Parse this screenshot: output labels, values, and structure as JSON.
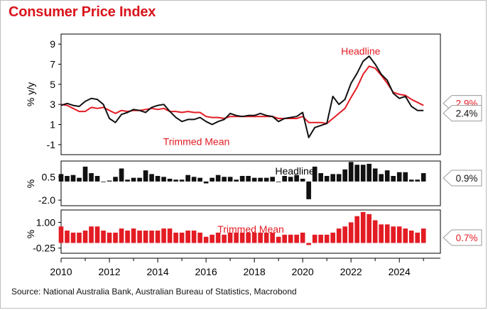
{
  "title": "Consumer Price Index",
  "source": "Source: National Australia Bank, Australian Bureau of Statistics, Macrobond",
  "colors": {
    "headline": "#111111",
    "trimmed": "#e31b23",
    "title": "#d9141b"
  },
  "chart_data": [
    {
      "type": "line",
      "ylabel": "% y/y",
      "xlim": [
        2010,
        2025.7
      ],
      "ylim": [
        -2,
        10
      ],
      "yticks": [
        9,
        7,
        5,
        3,
        1,
        -1
      ],
      "xticks": [
        2010,
        2012,
        2014,
        2016,
        2018,
        2020,
        2022,
        2024
      ],
      "annotations": [
        {
          "text": "Headline",
          "color": "#e31b23",
          "x": 2022.4,
          "y": 8.3
        },
        {
          "text": "Trimmed Mean",
          "color": "#e31b23",
          "x": 2015.6,
          "y": -0.7
        }
      ],
      "end_labels": [
        {
          "text": "2.9%",
          "color": "#e31b23",
          "value": 2.9
        },
        {
          "text": "2.4%",
          "color": "#111111",
          "value": 2.4
        }
      ],
      "series": [
        {
          "name": "Headline",
          "color": "#111111",
          "x": [
            2010.0,
            2010.25,
            2010.5,
            2010.75,
            2011.0,
            2011.25,
            2011.5,
            2011.75,
            2012.0,
            2012.25,
            2012.5,
            2012.75,
            2013.0,
            2013.25,
            2013.5,
            2013.75,
            2014.0,
            2014.25,
            2014.5,
            2014.75,
            2015.0,
            2015.25,
            2015.5,
            2015.75,
            2016.0,
            2016.25,
            2016.5,
            2016.75,
            2017.0,
            2017.25,
            2017.5,
            2017.75,
            2018.0,
            2018.25,
            2018.5,
            2018.75,
            2019.0,
            2019.25,
            2019.5,
            2019.75,
            2020.0,
            2020.25,
            2020.5,
            2020.75,
            2021.0,
            2021.25,
            2021.5,
            2021.75,
            2022.0,
            2022.25,
            2022.5,
            2022.75,
            2023.0,
            2023.25,
            2023.5,
            2023.75,
            2024.0,
            2024.25,
            2024.5,
            2024.75,
            2025.0
          ],
          "values": [
            2.9,
            3.1,
            2.9,
            2.8,
            3.3,
            3.6,
            3.5,
            3.0,
            1.6,
            1.2,
            2.0,
            2.2,
            2.5,
            2.4,
            2.2,
            2.7,
            2.9,
            3.0,
            2.3,
            1.7,
            1.3,
            1.5,
            1.5,
            1.7,
            1.3,
            1.0,
            1.3,
            1.5,
            2.1,
            1.9,
            1.8,
            1.9,
            1.9,
            2.1,
            1.9,
            1.8,
            1.3,
            1.6,
            1.7,
            1.8,
            2.2,
            -0.3,
            0.7,
            0.9,
            1.1,
            3.8,
            3.0,
            3.5,
            5.1,
            6.1,
            7.3,
            7.8,
            7.0,
            6.0,
            5.4,
            4.1,
            3.6,
            3.8,
            2.8,
            2.4,
            2.4
          ]
        },
        {
          "name": "Trimmed Mean",
          "color": "#e31b23",
          "x": [
            2010.0,
            2010.25,
            2010.5,
            2010.75,
            2011.0,
            2011.25,
            2011.5,
            2011.75,
            2012.0,
            2012.25,
            2012.5,
            2012.75,
            2013.0,
            2013.25,
            2013.5,
            2013.75,
            2014.0,
            2014.25,
            2014.5,
            2014.75,
            2015.0,
            2015.25,
            2015.5,
            2015.75,
            2016.0,
            2016.25,
            2016.5,
            2016.75,
            2017.0,
            2017.25,
            2017.5,
            2017.75,
            2018.0,
            2018.25,
            2018.5,
            2018.75,
            2019.0,
            2019.25,
            2019.5,
            2019.75,
            2020.0,
            2020.25,
            2020.5,
            2020.75,
            2021.0,
            2021.25,
            2021.5,
            2021.75,
            2022.0,
            2022.25,
            2022.5,
            2022.75,
            2023.0,
            2023.25,
            2023.5,
            2023.75,
            2024.0,
            2024.25,
            2024.5,
            2024.75,
            2025.0
          ],
          "values": [
            3.0,
            2.9,
            2.6,
            2.3,
            2.3,
            2.7,
            2.6,
            2.7,
            2.4,
            2.1,
            2.4,
            2.3,
            2.4,
            2.4,
            2.5,
            2.6,
            2.5,
            2.6,
            2.3,
            2.3,
            2.2,
            2.3,
            2.2,
            2.2,
            1.8,
            1.7,
            1.7,
            1.6,
            1.8,
            1.8,
            1.8,
            1.8,
            1.8,
            1.8,
            1.8,
            1.8,
            1.6,
            1.6,
            1.6,
            1.6,
            1.8,
            1.2,
            1.2,
            1.2,
            1.1,
            1.6,
            2.1,
            2.6,
            3.7,
            4.7,
            6.0,
            6.8,
            6.6,
            5.9,
            5.1,
            4.2,
            4.0,
            3.9,
            3.5,
            3.2,
            2.9
          ]
        }
      ]
    },
    {
      "type": "bar",
      "name": "Headline",
      "label": "Headline",
      "ylabel": "%",
      "yticks": [
        0.5,
        -2.0
      ],
      "ylim": [
        -2.6,
        2.2
      ],
      "color": "#111111",
      "end_label": "0.9%",
      "x": [
        2010.0,
        2010.25,
        2010.5,
        2010.75,
        2011.0,
        2011.25,
        2011.5,
        2011.75,
        2012.0,
        2012.25,
        2012.5,
        2012.75,
        2013.0,
        2013.25,
        2013.5,
        2013.75,
        2014.0,
        2014.25,
        2014.5,
        2014.75,
        2015.0,
        2015.25,
        2015.5,
        2015.75,
        2016.0,
        2016.25,
        2016.5,
        2016.75,
        2017.0,
        2017.25,
        2017.5,
        2017.75,
        2018.0,
        2018.25,
        2018.5,
        2018.75,
        2019.0,
        2019.25,
        2019.5,
        2019.75,
        2020.0,
        2020.25,
        2020.5,
        2020.75,
        2021.0,
        2021.25,
        2021.5,
        2021.75,
        2022.0,
        2022.25,
        2022.5,
        2022.75,
        2023.0,
        2023.25,
        2023.5,
        2023.75,
        2024.0,
        2024.25,
        2024.5,
        2024.75,
        2025.0
      ],
      "values": [
        0.8,
        0.6,
        0.7,
        0.4,
        1.6,
        0.9,
        0.6,
        0.0,
        0.1,
        0.5,
        1.4,
        0.2,
        0.4,
        0.4,
        1.2,
        0.8,
        0.6,
        0.5,
        0.3,
        0.2,
        0.2,
        0.7,
        0.5,
        0.4,
        -0.2,
        0.4,
        0.7,
        0.5,
        0.5,
        0.2,
        0.6,
        0.6,
        0.4,
        0.4,
        0.4,
        0.5,
        0.0,
        0.6,
        0.5,
        0.7,
        0.3,
        -1.9,
        1.6,
        0.9,
        0.6,
        0.8,
        0.8,
        1.3,
        2.1,
        1.8,
        1.8,
        1.9,
        1.4,
        0.8,
        1.2,
        0.6,
        1.0,
        1.0,
        0.2,
        0.2,
        0.9
      ]
    },
    {
      "type": "bar",
      "name": "Trimmed Mean",
      "label": "Trimmed Mean",
      "ylabel": "%",
      "yticks": [
        1.0,
        -0.25
      ],
      "ylim": [
        -0.5,
        1.6
      ],
      "color": "#e31b23",
      "end_label": "0.7%",
      "x": [
        2010.0,
        2010.25,
        2010.5,
        2010.75,
        2011.0,
        2011.25,
        2011.5,
        2011.75,
        2012.0,
        2012.25,
        2012.5,
        2012.75,
        2013.0,
        2013.25,
        2013.5,
        2013.75,
        2014.0,
        2014.25,
        2014.5,
        2014.75,
        2015.0,
        2015.25,
        2015.5,
        2015.75,
        2016.0,
        2016.25,
        2016.5,
        2016.75,
        2017.0,
        2017.25,
        2017.5,
        2017.75,
        2018.0,
        2018.25,
        2018.5,
        2018.75,
        2019.0,
        2019.25,
        2019.5,
        2019.75,
        2020.0,
        2020.25,
        2020.5,
        2020.75,
        2021.0,
        2021.25,
        2021.5,
        2021.75,
        2022.0,
        2022.25,
        2022.5,
        2022.75,
        2023.0,
        2023.25,
        2023.5,
        2023.75,
        2024.0,
        2024.25,
        2024.5,
        2024.75,
        2025.0
      ],
      "values": [
        0.8,
        0.6,
        0.5,
        0.5,
        0.6,
        0.8,
        0.8,
        0.6,
        0.5,
        0.5,
        0.7,
        0.6,
        0.7,
        0.6,
        0.6,
        0.6,
        0.6,
        0.7,
        0.7,
        0.5,
        0.5,
        0.6,
        0.6,
        0.5,
        0.3,
        0.4,
        0.5,
        0.4,
        0.5,
        0.5,
        0.5,
        0.5,
        0.5,
        0.5,
        0.5,
        0.5,
        0.3,
        0.4,
        0.4,
        0.4,
        0.5,
        -0.1,
        0.4,
        0.4,
        0.4,
        0.5,
        0.7,
        0.8,
        1.0,
        1.3,
        1.5,
        1.4,
        1.1,
        0.9,
        0.9,
        0.8,
        0.8,
        0.7,
        0.6,
        0.5,
        0.7
      ]
    }
  ]
}
